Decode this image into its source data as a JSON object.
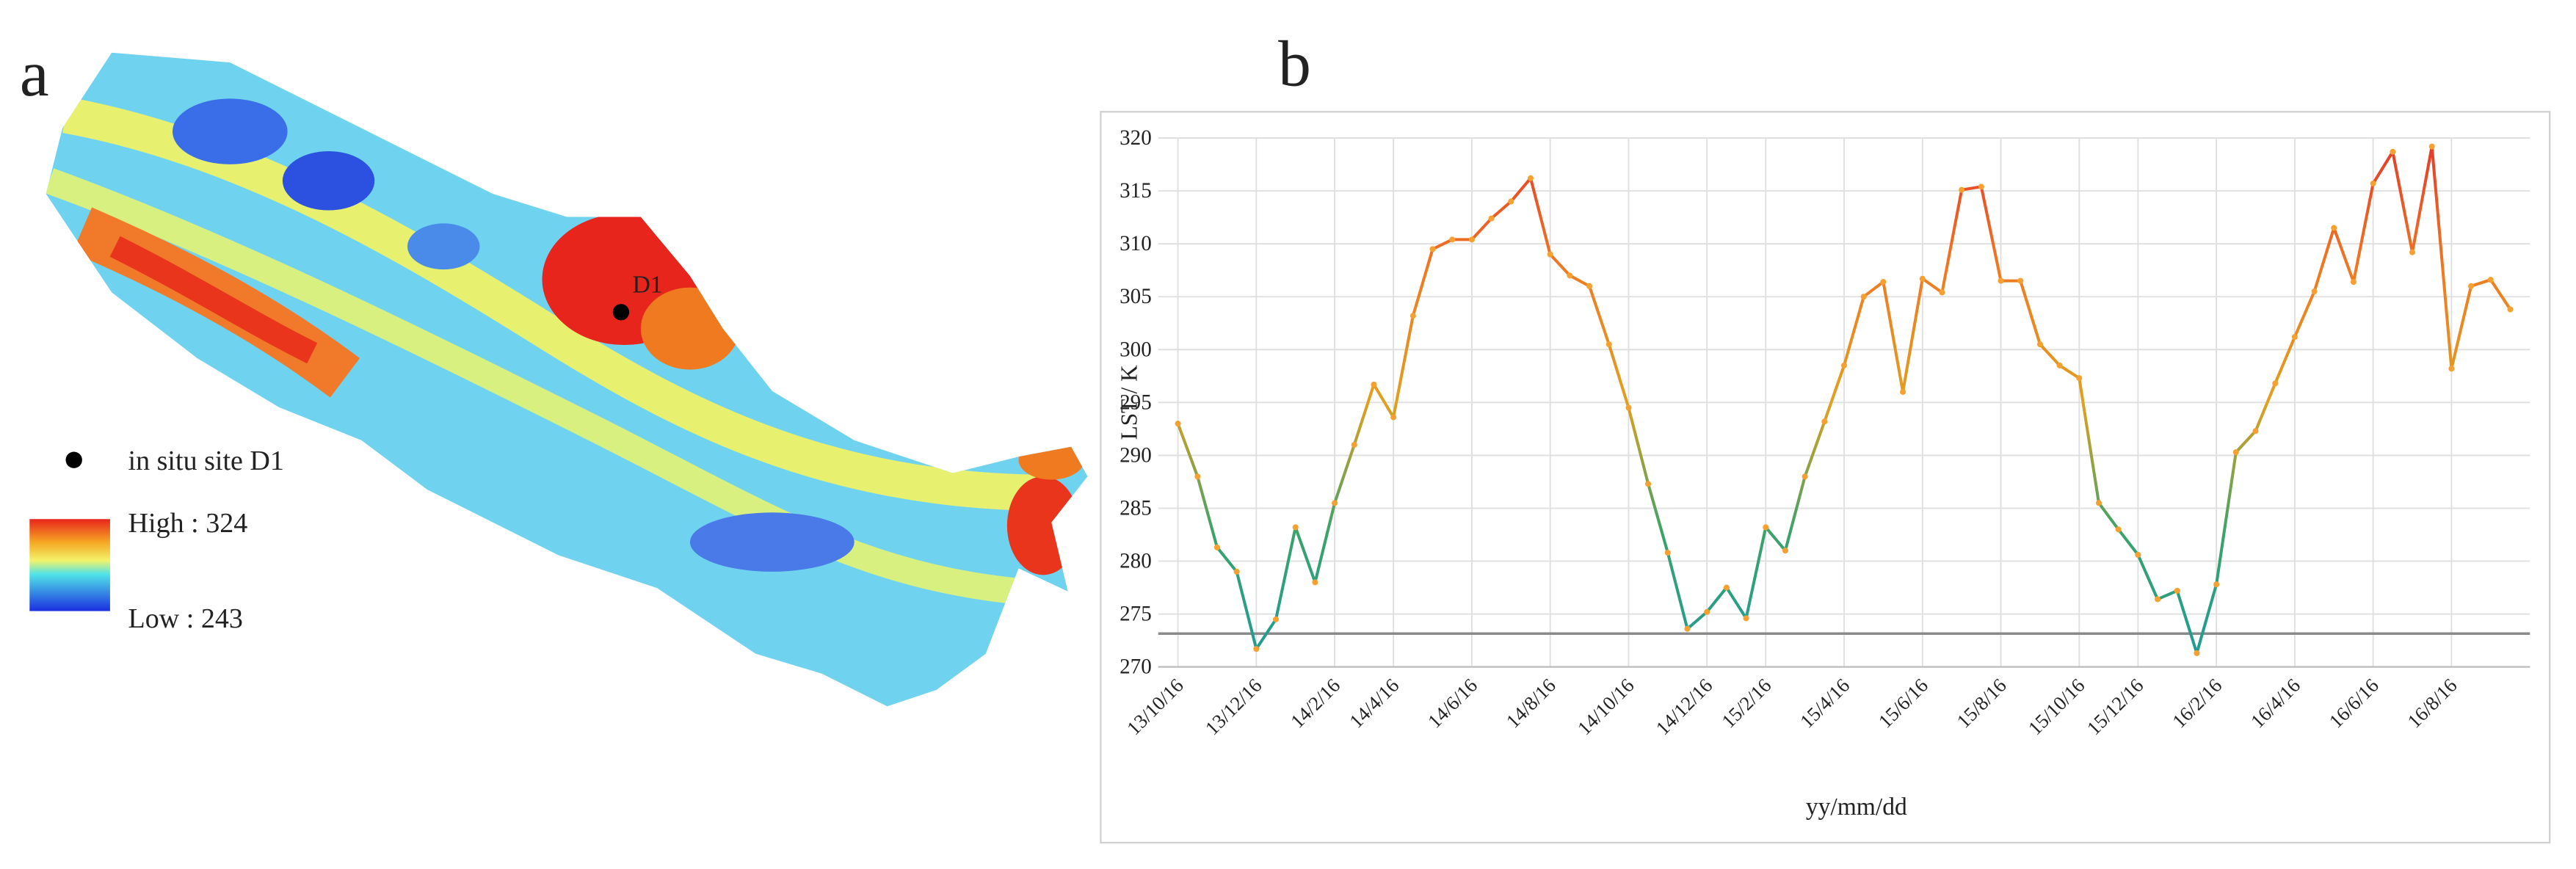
{
  "panel_labels": [
    "a",
    "b"
  ],
  "map": {
    "site_label": "D1",
    "legend": {
      "site": "in situ site D1",
      "high": "High : 324",
      "low": "Low : 243"
    }
  },
  "chart_data": {
    "type": "line",
    "x_label": "yy/mm/dd",
    "y_label": "LST / K",
    "categories": [
      "13/10/16",
      null,
      null,
      null,
      "13/12/16",
      null,
      null,
      null,
      "14/2/16",
      null,
      null,
      "14/4/16",
      null,
      null,
      null,
      "14/6/16",
      null,
      null,
      null,
      "14/8/16",
      null,
      null,
      null,
      "14/10/16",
      null,
      null,
      null,
      "14/12/16",
      null,
      null,
      "15/2/16",
      null,
      null,
      null,
      "15/4/16",
      null,
      null,
      null,
      "15/6/16",
      null,
      null,
      null,
      "15/8/16",
      null,
      null,
      null,
      "15/10/16",
      null,
      null,
      "15/12/16",
      null,
      null,
      null,
      "16/2/16",
      null,
      null,
      null,
      "16/4/16",
      null,
      null,
      null,
      "16/6/16",
      null,
      null,
      null,
      "16/8/16",
      null,
      null,
      null
    ],
    "values": [
      293,
      288,
      281.3,
      279,
      271.7,
      274.5,
      283.2,
      278,
      285.5,
      291,
      296.7,
      293.6,
      303.2,
      309.5,
      310.4,
      310.4,
      312.4,
      314,
      316.2,
      309,
      307,
      306,
      300.5,
      294.5,
      287.3,
      280.8,
      273.6,
      275.2,
      277.5,
      274.6,
      283.2,
      281,
      288,
      293.2,
      298.5,
      305,
      306.4,
      296,
      306.7,
      305.4,
      315.1,
      315.4,
      306.5,
      306.5,
      300.5,
      298.5,
      297.3,
      285.5,
      283,
      280.6,
      276.4,
      277.2,
      271.3,
      277.8,
      290.3,
      292.3,
      296.8,
      301.2,
      305.5,
      311.5,
      306.4,
      315.7,
      318.7,
      309.2,
      319.2,
      298.2,
      306,
      306.6,
      303.8
    ],
    "ylim": [
      270,
      320
    ],
    "yticks": [
      270,
      275,
      280,
      285,
      290,
      295,
      300,
      305,
      310,
      315,
      320
    ],
    "hline": 273.15,
    "hline_color": "#8a8a8a",
    "line_colors": [
      "#1e9a9a",
      "#3aa36a",
      "#e0a020",
      "#ef7a22",
      "#e4372a"
    ],
    "marker_color": "#f5a030",
    "grid": true
  }
}
